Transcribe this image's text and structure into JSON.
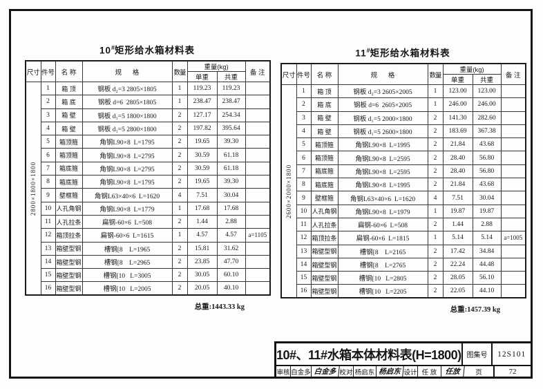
{
  "headers": {
    "size": "尺寸",
    "item": "件号",
    "name": "名 称",
    "spec": "规      格",
    "qty": "数量",
    "weight": "重量(kg)",
    "unit": "单重",
    "totalw": "共重",
    "note": "备 注"
  },
  "tables": [
    {
      "title": {
        "num": "10",
        "sup": "#",
        "rest": "矩形给水箱材料表"
      },
      "dimension": "2800×1800×1800",
      "total_label": "总重:1443.33 kg",
      "rows": [
        {
          "no": "1",
          "name": "箱 顶",
          "spec": "钢板 d₂=3 2805×1805",
          "qty": "1",
          "unit": "119.23",
          "total": "119.23",
          "note": ""
        },
        {
          "no": "2",
          "name": "箱 底",
          "spec": "钢板 d=6  2805×1805",
          "qty": "1",
          "unit": "238.47",
          "total": "238.47",
          "note": ""
        },
        {
          "no": "3",
          "name": "箱 壁",
          "spec": "钢板 d₁=5 1800×1800",
          "qty": "2",
          "unit": "127.17",
          "total": "254.34",
          "note": ""
        },
        {
          "no": "4",
          "name": "箱 壁",
          "spec": "钢板 d₁=5 2800×1800",
          "qty": "2",
          "unit": "197.82",
          "total": "395.64",
          "note": ""
        },
        {
          "no": "5",
          "name": "箱顶箍",
          "spec": "角钢L90×8  L=1795",
          "qty": "2",
          "unit": "19.65",
          "total": "39.30",
          "note": ""
        },
        {
          "no": "6",
          "name": "箱顶箍",
          "spec": "角钢L90×8  L=2795",
          "qty": "2",
          "unit": "30.59",
          "total": "61.18",
          "note": ""
        },
        {
          "no": "7",
          "name": "箱底箍",
          "spec": "角钢L90×8  L=2795",
          "qty": "2",
          "unit": "30.59",
          "total": "61.18",
          "note": ""
        },
        {
          "no": "8",
          "name": "箱底箍",
          "spec": "角钢L90×8  L=1795",
          "qty": "2",
          "unit": "19.65",
          "total": "39.30",
          "note": ""
        },
        {
          "no": "9",
          "name": "壁框箍",
          "spec": "角钢L63×40×6  L=1620",
          "qty": "4",
          "unit": "7.51",
          "total": "30.04",
          "note": ""
        },
        {
          "no": "10",
          "name": "人孔角钢",
          "spec": "角钢L90×8  L=1779",
          "qty": "1",
          "unit": "17.68",
          "total": "17.68",
          "note": ""
        },
        {
          "no": "11",
          "name": "人孔拉条",
          "spec": "扁钢-60×6  L=508",
          "qty": "2",
          "unit": "1.44",
          "total": "2.88",
          "note": ""
        },
        {
          "no": "12",
          "name": "箱顶拉条",
          "spec": "扁钢-60×6  L=1615",
          "qty": "1",
          "unit": "4.57",
          "total": "4.57",
          "note": "a=1105"
        },
        {
          "no": "13",
          "name": "箱壁型钢",
          "spec": "槽钢[8    L=1965",
          "qty": "2",
          "unit": "15.81",
          "total": "31.62",
          "note": ""
        },
        {
          "no": "14",
          "name": "箱壁型钢",
          "spec": "槽钢[8    L=2965",
          "qty": "2",
          "unit": "23.85",
          "total": "47.70",
          "note": ""
        },
        {
          "no": "15",
          "name": "箱壁型钢",
          "spec": "槽钢[10   L=3005",
          "qty": "2",
          "unit": "30.05",
          "total": "60.10",
          "note": ""
        },
        {
          "no": "16",
          "name": "箱壁型钢",
          "spec": "槽钢[10   L=2005",
          "qty": "2",
          "unit": "20.05",
          "total": "40.10",
          "note": ""
        }
      ]
    },
    {
      "title": {
        "num": "11",
        "sup": "#",
        "rest": "矩形给水箱材料表"
      },
      "dimension": "2600×2000×1800",
      "total_label": "总重:1457.39 kg",
      "rows": [
        {
          "no": "1",
          "name": "箱 顶",
          "spec": "钢板 d₂=3 2605×2005",
          "qty": "1",
          "unit": "123.00",
          "total": "123.00",
          "note": ""
        },
        {
          "no": "2",
          "name": "箱 底",
          "spec": "钢板 d=6  2605×2005",
          "qty": "1",
          "unit": "246.00",
          "total": "246.00",
          "note": ""
        },
        {
          "no": "3",
          "name": "箱 壁",
          "spec": "钢板 d₁=5 2000×1800",
          "qty": "2",
          "unit": "141.30",
          "total": "282.60",
          "note": ""
        },
        {
          "no": "4",
          "name": "箱 壁",
          "spec": "钢板 d₁=5 2600×1800",
          "qty": "2",
          "unit": "183.69",
          "total": "367.38",
          "note": ""
        },
        {
          "no": "5",
          "name": "箱顶箍",
          "spec": "角钢L90×8  L=1995",
          "qty": "2",
          "unit": "21.84",
          "total": "43.68",
          "note": ""
        },
        {
          "no": "6",
          "name": "箱顶箍",
          "spec": "角钢L90×8  L=2595",
          "qty": "2",
          "unit": "28.40",
          "total": "56.80",
          "note": ""
        },
        {
          "no": "7",
          "name": "箱底箍",
          "spec": "角钢L90×8  L=2595",
          "qty": "2",
          "unit": "28.40",
          "total": "56.80",
          "note": ""
        },
        {
          "no": "8",
          "name": "箱底箍",
          "spec": "角钢L90×8  L=1995",
          "qty": "2",
          "unit": "21.84",
          "total": "43.68",
          "note": ""
        },
        {
          "no": "9",
          "name": "壁框箍",
          "spec": "角钢L63×40×6  L=1620",
          "qty": "4",
          "unit": "7.51",
          "total": "30.04",
          "note": ""
        },
        {
          "no": "10",
          "name": "人孔角钢",
          "spec": "角钢L90×8  L=1979",
          "qty": "1",
          "unit": "19.87",
          "total": "19.87",
          "note": ""
        },
        {
          "no": "11",
          "name": "人孔拉条",
          "spec": "扁钢-60×6  L=508",
          "qty": "2",
          "unit": "1.44",
          "total": "2.88",
          "note": ""
        },
        {
          "no": "12",
          "name": "箱顶拉条",
          "spec": "扁钢-60×6  L=1815",
          "qty": "1",
          "unit": "5.14",
          "total": "5.14",
          "note": "a=1005"
        },
        {
          "no": "13",
          "name": "箱壁型钢",
          "spec": "槽钢[8    L=2165",
          "qty": "2",
          "unit": "17.42",
          "total": "34.84",
          "note": ""
        },
        {
          "no": "14",
          "name": "箱壁型钢",
          "spec": "槽钢[8    L=2765",
          "qty": "2",
          "unit": "22.24",
          "total": "44.48",
          "note": ""
        },
        {
          "no": "15",
          "name": "箱壁型钢",
          "spec": "槽钢[10   L=2805",
          "qty": "2",
          "unit": "28.05",
          "total": "56.10",
          "note": ""
        },
        {
          "no": "16",
          "name": "箱壁型钢",
          "spec": "槽钢[10   L=2205",
          "qty": "2",
          "unit": "22.05",
          "total": "44.10",
          "note": ""
        }
      ]
    }
  ],
  "titleblock": {
    "title": "10#、11#水箱本体材料表(H=1800)",
    "atlas_label": "图集号",
    "atlas_no": "12S101",
    "reviewer_label": "审核",
    "reviewer_name": "白金多",
    "reviewer_sig": "白金多",
    "proof_label": "校对",
    "proof_name": "杨启东",
    "proof_sig": "杨启东",
    "design_label": "设计",
    "design_name": "任 放",
    "design_sig": "任放",
    "page_label": "页",
    "page_no": "72"
  }
}
